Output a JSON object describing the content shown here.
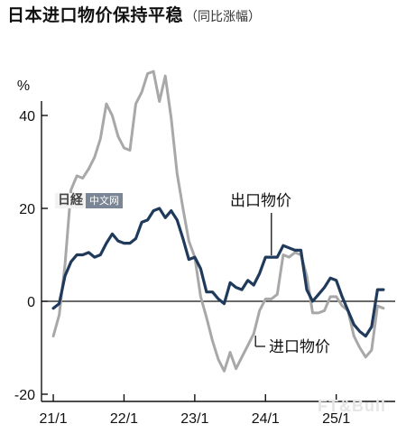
{
  "title": "日本进口物价保持平稳",
  "subtitle": "（同比涨幅）",
  "logo": {
    "mark": "日経",
    "tag": "中文网"
  },
  "watermark": "FT&Bull",
  "colors": {
    "export": "#1f3a5a",
    "import": "#a8a8a8",
    "axis": "#111111"
  },
  "chart_data": {
    "type": "line",
    "yunit": "%",
    "ylim": [
      -20,
      40
    ],
    "yticks": [
      40,
      20,
      0,
      -20
    ],
    "xticks": [
      "21/1",
      "22/1",
      "23/1",
      "24/1",
      "25/1"
    ],
    "xlim": [
      "2020-11",
      "2025-11"
    ],
    "grid": false,
    "series": [
      {
        "name": "出口物价",
        "x": [
          "2021-01",
          "2021-02",
          "2021-03",
          "2021-04",
          "2021-05",
          "2021-06",
          "2021-07",
          "2021-08",
          "2021-09",
          "2021-10",
          "2021-11",
          "2021-12",
          "2022-01",
          "2022-02",
          "2022-03",
          "2022-04",
          "2022-05",
          "2022-06",
          "2022-07",
          "2022-08",
          "2022-09",
          "2022-10",
          "2022-11",
          "2022-12",
          "2023-01",
          "2023-02",
          "2023-03",
          "2023-04",
          "2023-05",
          "2023-06",
          "2023-07",
          "2023-08",
          "2023-09",
          "2023-10",
          "2023-11",
          "2023-12",
          "2024-01",
          "2024-02",
          "2024-03",
          "2024-04",
          "2024-05",
          "2024-06",
          "2024-07",
          "2024-08",
          "2024-09",
          "2024-10",
          "2024-11",
          "2024-12",
          "2025-01",
          "2025-02",
          "2025-03",
          "2025-04",
          "2025-05",
          "2025-06",
          "2025-07",
          "2025-08",
          "2025-09"
        ],
        "values": [
          -1.5,
          -0.5,
          5.5,
          8.5,
          10,
          10,
          10.5,
          9.5,
          10,
          12.5,
          14.5,
          13,
          12.5,
          12.5,
          13.5,
          17,
          17.5,
          19.5,
          20,
          18,
          19.5,
          17.5,
          13.5,
          9,
          9.5,
          7,
          2,
          2,
          0.5,
          -0.5,
          4,
          3,
          2.5,
          4.5,
          3.5,
          6,
          9.5,
          9.5,
          9.5,
          12,
          11.5,
          11,
          11,
          2.5,
          0,
          1.5,
          3,
          5,
          4.5,
          1,
          -2,
          -5,
          -6.5,
          -7.5,
          -5.5,
          2.5,
          2.5
        ]
      },
      {
        "name": "进口物价",
        "x": [
          "2021-01",
          "2021-02",
          "2021-03",
          "2021-04",
          "2021-05",
          "2021-06",
          "2021-07",
          "2021-08",
          "2021-09",
          "2021-10",
          "2021-11",
          "2021-12",
          "2022-01",
          "2022-02",
          "2022-03",
          "2022-04",
          "2022-05",
          "2022-06",
          "2022-07",
          "2022-08",
          "2022-09",
          "2022-10",
          "2022-11",
          "2022-12",
          "2023-01",
          "2023-02",
          "2023-03",
          "2023-04",
          "2023-05",
          "2023-06",
          "2023-07",
          "2023-08",
          "2023-09",
          "2023-10",
          "2023-11",
          "2023-12",
          "2024-01",
          "2024-02",
          "2024-03",
          "2024-04",
          "2024-05",
          "2024-06",
          "2024-07",
          "2024-08",
          "2024-09",
          "2024-10",
          "2024-11",
          "2024-12",
          "2025-01",
          "2025-02",
          "2025-03",
          "2025-04",
          "2025-05",
          "2025-06",
          "2025-07",
          "2025-08",
          "2025-09"
        ],
        "values": [
          -7.5,
          -3,
          8,
          24,
          27,
          26.5,
          28.5,
          31,
          35,
          42.5,
          40,
          35.5,
          33,
          32.5,
          42.5,
          45,
          49,
          49.5,
          43,
          48.5,
          39.5,
          27.5,
          20,
          13,
          9.5,
          1,
          -3.5,
          -8.5,
          -12.5,
          -15,
          -11,
          -14.5,
          -12,
          -9.5,
          -7,
          -2,
          0.5,
          0.5,
          1.5,
          10,
          9.5,
          10.5,
          10,
          5.5,
          -2.5,
          -2.5,
          -2,
          1,
          1,
          -1,
          -2,
          -7.5,
          -10,
          -12,
          -10.5,
          -1,
          -1.5
        ]
      }
    ],
    "annotations": [
      {
        "text": "出口物价",
        "series": "出口物价",
        "at": "2024-02"
      },
      {
        "text": "进口物价",
        "series": "进口物价",
        "at": "2023-11"
      }
    ]
  }
}
